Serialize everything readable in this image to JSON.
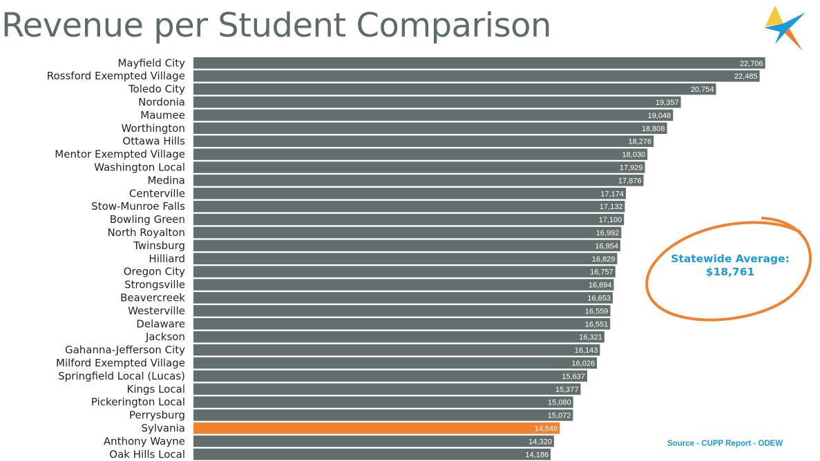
{
  "title": "Revenue per Student Comparison",
  "callout": {
    "line1": "Statewide Average:",
    "line2": "$18,761",
    "ring_color": "#f0822f",
    "text_color": "#1a9bd7"
  },
  "source": "Source - CUPP Report - ODEW",
  "logo": {
    "icon": "star-logo-icon",
    "colors": [
      "#1a9bd7",
      "#f0822f"
    ]
  },
  "colors": {
    "bar": "#626d6d",
    "highlight": "#f0822f"
  },
  "chart_data": {
    "type": "bar",
    "orientation": "horizontal",
    "categories": [
      "Mayfield City",
      "Rossford Exempted Village",
      "Toledo City",
      "Nordonia",
      "Maumee",
      "Worthington",
      "Ottawa Hills",
      "Mentor Exempted Village",
      "Washington Local",
      "Medina",
      "Centerville",
      "Stow-Munroe Falls",
      "Bowling Green",
      "North Royalton",
      "Twinsburg",
      "Hilliard",
      "Oregon City",
      "Strongsville",
      "Beavercreek",
      "Westerville",
      "Delaware",
      "Jackson",
      "Gahanna-Jefferson City",
      "Milford Exempted Village",
      "Springfield Local (Lucas)",
      "Kings Local",
      "Pickerington Local",
      "Perrysburg",
      "Sylvania",
      "Anthony Wayne",
      "Oak Hills Local"
    ],
    "values": [
      22706,
      22485,
      20754,
      19357,
      19048,
      18808,
      18276,
      18030,
      17929,
      17876,
      17174,
      17132,
      17100,
      16992,
      16954,
      16829,
      16757,
      16694,
      16653,
      16559,
      16551,
      16321,
      16143,
      16026,
      15637,
      15377,
      15080,
      15072,
      14548,
      14320,
      14186
    ],
    "value_labels": [
      "22,706",
      "22,485",
      "20,754",
      "19,357",
      "19,048",
      "18,808",
      "18,276",
      "18,030",
      "17,929",
      "17,876",
      "17,174",
      "17,132",
      "17,100",
      "16,992",
      "16,954",
      "16,829",
      "16,757",
      "16,694",
      "16,653",
      "16,559",
      "16,551",
      "16,321",
      "16,143",
      "16,026",
      "15,637",
      "15,377",
      "15,080",
      "15,072",
      "14,548",
      "14,320",
      "14,186"
    ],
    "highlight_category": "Sylvania",
    "title": "Revenue per Student Comparison",
    "xlabel": "",
    "ylabel": "",
    "grid": false,
    "legend": "none"
  }
}
